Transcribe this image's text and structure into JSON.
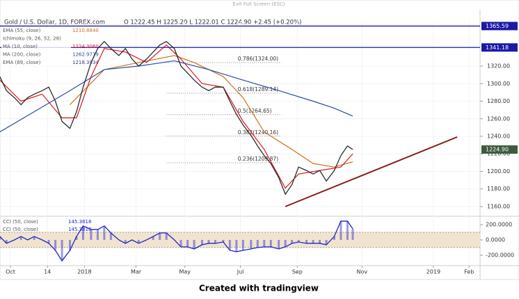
{
  "chart_data": {
    "type": "line",
    "top_hint": "Exit Full Screen (ESC)",
    "title": "Gold / U.S. Dollar, 1D, FOREX.com",
    "ohlc": "O 1222.45  H 1225.20  L 1222.01  C 1224.90  +2.45 (+0.20%)",
    "footer": "Created with tradingview",
    "color": "#2b2b2b",
    "x": [
      -8,
      -3,
      3,
      8,
      13,
      18,
      24,
      29,
      34,
      39,
      45,
      50,
      55,
      61,
      66,
      71,
      76,
      82,
      87,
      92,
      97,
      103,
      108,
      113,
      118,
      124,
      129,
      134,
      139,
      145,
      150,
      155,
      161,
      166,
      171,
      176,
      182,
      187,
      192,
      197,
      203,
      208,
      213,
      218,
      224,
      229,
      234,
      239,
      245,
      250,
      255,
      259
    ],
    "values": [
      1308,
      1292,
      1284,
      1276,
      1284,
      1288,
      1292,
      1296,
      1280,
      1257,
      1249,
      1268,
      1296,
      1324,
      1340,
      1348,
      1340,
      1332,
      1340,
      1328,
      1320,
      1328,
      1336,
      1344,
      1348,
      1340,
      1320,
      1312,
      1304,
      1296,
      1292,
      1296,
      1296,
      1280,
      1265,
      1253,
      1241,
      1229,
      1218,
      1209,
      1193,
      1174,
      1185,
      1205,
      1201,
      1197,
      1201,
      1189,
      1201,
      1218,
      1229,
      1225
    ],
    "xlim": [
      -7.9,
      355.3
    ],
    "xticks": [
      {
        "value": 0,
        "label": "Oct"
      },
      {
        "value": 28,
        "label": "14"
      },
      {
        "value": 56,
        "label": "2018"
      },
      {
        "value": 95,
        "label": "Mar"
      },
      {
        "value": 132,
        "label": "May"
      },
      {
        "value": 174,
        "label": "Jul"
      },
      {
        "value": 217,
        "label": "Sep"
      },
      {
        "value": 266,
        "label": "Nov"
      },
      {
        "value": 320,
        "label": "2019"
      },
      {
        "value": 347,
        "label": "Feb"
      }
    ],
    "ylim": [
      1149.7,
      1371.49
    ],
    "yticks": [
      {
        "value": 1160,
        "label": "1160.00"
      },
      {
        "value": 1180,
        "label": "1180.00"
      },
      {
        "value": 1200,
        "label": "1200.00"
      },
      {
        "value": 1220,
        "label": "1220.00"
      },
      {
        "value": 1240,
        "label": "1240.00"
      },
      {
        "value": 1260,
        "label": "1260.00"
      },
      {
        "value": 1280,
        "label": "1280.00"
      },
      {
        "value": 1300,
        "label": "1300.00"
      },
      {
        "value": 1320,
        "label": "1320.00"
      }
    ],
    "series": [
      {
        "name": "EMA (55, close)",
        "legend_value": "1210.8840",
        "color": "#c8741c",
        "x": [
          45,
          71,
          97,
          124,
          139,
          161,
          176,
          192,
          213,
          229,
          245,
          259
        ],
        "values": [
          1276,
          1316,
          1324,
          1332,
          1324,
          1308,
          1284,
          1245,
          1225,
          1209,
          1205,
          1211
        ]
      },
      {
        "name": "Ichimoku (9, 26, 52, 26)",
        "color": "#9aa0a6"
      },
      {
        "name": "MA (10, close)",
        "legend_value": "1224.3060",
        "color": "#e0141e",
        "x": [
          -8,
          8,
          24,
          39,
          50,
          61,
          71,
          87,
          103,
          118,
          129,
          145,
          161,
          176,
          192,
          208,
          218,
          234,
          250,
          259
        ],
        "values": [
          1304,
          1280,
          1288,
          1261,
          1261,
          1308,
          1340,
          1336,
          1324,
          1344,
          1328,
          1300,
          1296,
          1257,
          1225,
          1181,
          1197,
          1201,
          1205,
          1220
        ]
      },
      {
        "name": "MA (200, close)",
        "legend_value": "1262.9719",
        "color": "#2c4aa6",
        "x": [
          -8,
          18,
          45,
          71,
          97,
          124,
          150,
          176,
          203,
          229,
          245,
          259
        ],
        "values": [
          1245,
          1268,
          1292,
          1316,
          1320,
          1326,
          1316,
          1304,
          1292,
          1280,
          1272,
          1263
        ]
      },
      {
        "name": "EMA (89, close)",
        "legend_value": "1218.3934",
        "color": "#3a3a8a"
      }
    ],
    "price_lines": [
      {
        "value": 1365.59,
        "color": "#1a1aa6"
      },
      {
        "value": 1341.18,
        "color": "#1a1aa6"
      }
    ],
    "last_price": {
      "value": 1224.9,
      "label": "1224.90",
      "color": "#3d5a3d"
    },
    "fib_levels": [
      {
        "value": 1324,
        "label": "0.786(1324.00)"
      },
      {
        "value": 1289.14,
        "label": "0.618(1289.14)"
      },
      {
        "value": 1264.65,
        "label": "0.5(1264.65)"
      },
      {
        "value": 1240.16,
        "label": "0.382(1240.16)"
      },
      {
        "value": 1209.87,
        "label": "0.236(1209.87)"
      }
    ],
    "trendline": {
      "x": [
        208,
        338
      ],
      "values": [
        1160,
        1239.2
      ],
      "color": "#8b1a1a"
    },
    "cci": {
      "legend": [
        {
          "name": "CCI (50, close)",
          "legend_value": "145.3818"
        },
        {
          "name": "CCI (50, close)",
          "legend_value": "145.3818"
        }
      ],
      "color": "#2222cc",
      "values": [
        45,
        -45,
        0,
        45,
        0,
        45,
        0,
        -45,
        -136,
        -273,
        -136,
        45,
        182,
        136,
        136,
        182,
        91,
        0,
        -45,
        0,
        -45,
        0,
        45,
        91,
        91,
        0,
        -91,
        -91,
        -118,
        -64,
        -45,
        -45,
        -27,
        -136,
        -155,
        -136,
        -118,
        -100,
        -91,
        -91,
        -118,
        -91,
        -45,
        -27,
        -45,
        -45,
        -45,
        -64,
        45,
        245,
        245,
        145
      ],
      "ylim": [
        -318,
        300
      ],
      "yticks": [
        {
          "value": 200,
          "label": "200.0000"
        },
        {
          "value": 0,
          "label": "0.0000"
        },
        {
          "value": -200,
          "label": "-200.0000"
        }
      ],
      "band": [
        -100,
        100
      ],
      "band_color": "#f0e4cf"
    }
  }
}
